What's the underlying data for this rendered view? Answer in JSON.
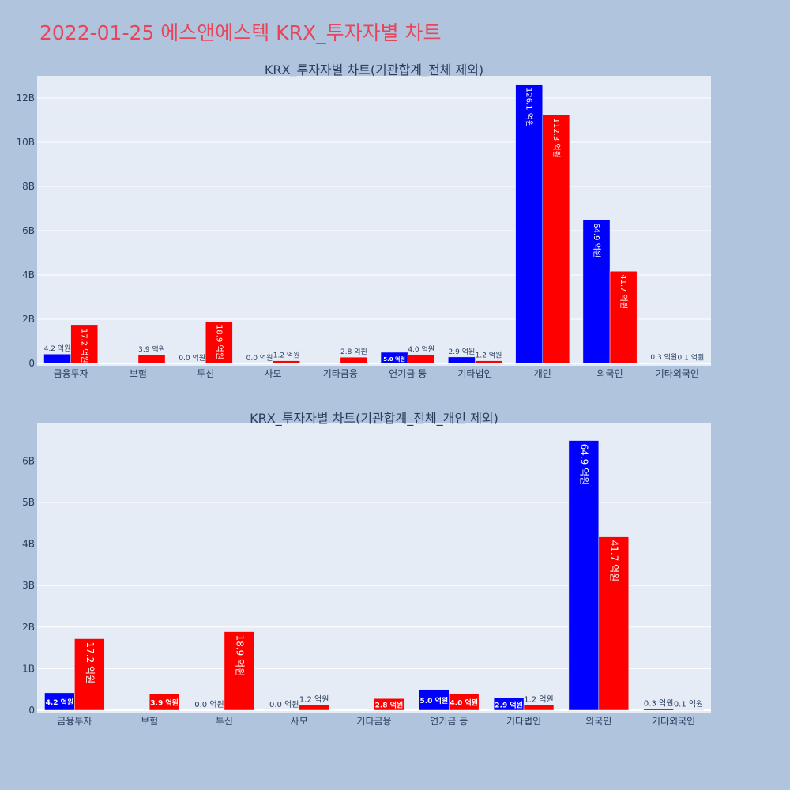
{
  "page_title": "2022-01-25 에스앤에스텍 KRX_투자자별 차트",
  "colors": {
    "buy": "#0000ff",
    "sell": "#ff0000",
    "title": "#e8455a",
    "background": "#b0c4de",
    "plot_bg": "#e5ecf6"
  },
  "chart_data": [
    {
      "type": "bar",
      "title": "KRX_투자자별 차트(기관합계_전체 제외)",
      "xlabel": "",
      "ylabel": "",
      "ylim": [
        0,
        13
      ],
      "y_ticks": [
        0,
        2,
        4,
        6,
        8,
        10,
        12
      ],
      "y_tick_labels": [
        "0",
        "2B",
        "4B",
        "6B",
        "8B",
        "10B",
        "12B"
      ],
      "grid": true,
      "categories": [
        "금융투자",
        "보험",
        "투신",
        "사모",
        "기타금융",
        "연기금 등",
        "기타법인",
        "개인",
        "외국인",
        "기타외국인"
      ],
      "series": [
        {
          "color": "#0000ff",
          "values": [
            0.42,
            0,
            0.0,
            0.0,
            0,
            0.5,
            0.29,
            12.61,
            6.49,
            0.03
          ],
          "labels": [
            "4.2 억원",
            "",
            "0.0 억원",
            "0.0 억원",
            "",
            "5.0 억원",
            "2.9 억원",
            "126.1 억원",
            "64.9 억원",
            "0.3 억원"
          ]
        },
        {
          "color": "#ff0000",
          "values": [
            1.72,
            0.39,
            1.89,
            0.12,
            0.28,
            0.4,
            0.12,
            11.23,
            4.17,
            0.01
          ],
          "labels": [
            "17.2 억원",
            "3.9 억원",
            "18.9 억원",
            "1.2 억원",
            "2.8 억원",
            "4.0 억원",
            "1.2 억원",
            "112.3 억원",
            "41.7 억원",
            "0.1 억원"
          ]
        }
      ]
    },
    {
      "type": "bar",
      "title": "KRX_투자자별 차트(기관합계_전체_개인 제외)",
      "xlabel": "",
      "ylabel": "",
      "ylim": [
        0,
        6.9
      ],
      "y_ticks": [
        0,
        1,
        2,
        3,
        4,
        5,
        6
      ],
      "y_tick_labels": [
        "0",
        "1B",
        "2B",
        "3B",
        "4B",
        "5B",
        "6B"
      ],
      "grid": true,
      "categories": [
        "금융투자",
        "보험",
        "투신",
        "사모",
        "기타금융",
        "연기금 등",
        "기타법인",
        "외국인",
        "기타외국인"
      ],
      "series": [
        {
          "color": "#0000ff",
          "values": [
            0.42,
            0,
            0.0,
            0.0,
            0,
            0.5,
            0.29,
            6.49,
            0.03
          ],
          "labels": [
            "4.2 억원",
            "",
            "0.0 억원",
            "0.0 억원",
            "",
            "5.0 억원",
            "2.9 억원",
            "64.9 억원",
            "0.3 억원"
          ]
        },
        {
          "color": "#ff0000",
          "values": [
            1.72,
            0.39,
            1.89,
            0.12,
            0.28,
            0.4,
            0.12,
            4.17,
            0.01
          ],
          "labels": [
            "17.2 억원",
            "3.9 억원",
            "18.9 억원",
            "1.2 억원",
            "2.8 억원",
            "4.0 억원",
            "1.2 억원",
            "41.7 억원",
            "0.1 억원"
          ]
        }
      ]
    }
  ]
}
